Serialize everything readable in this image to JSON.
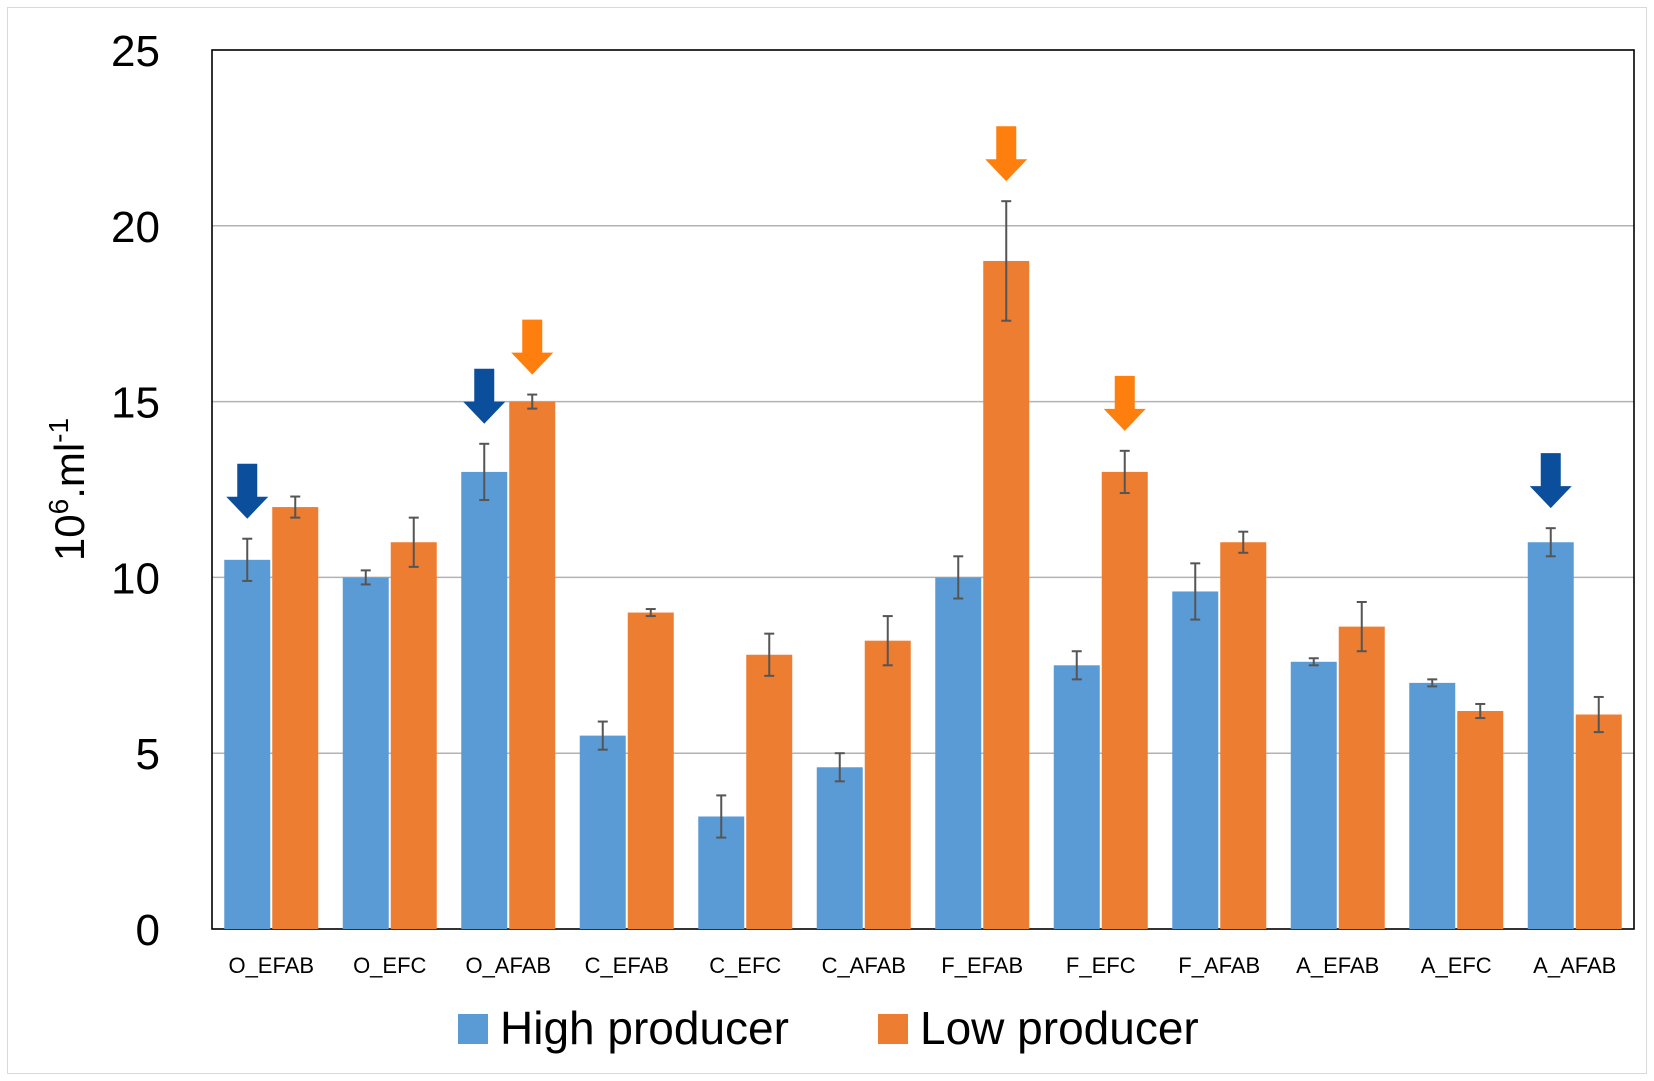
{
  "chart_data": {
    "type": "bar",
    "categories": [
      "O_EFAB",
      "O_EFC",
      "O_AFAB",
      "C_EFAB",
      "C_EFC",
      "C_AFAB",
      "F_EFAB",
      "F_EFC",
      "F_AFAB",
      "A_EFAB",
      "A_EFC",
      "A_AFAB"
    ],
    "series": [
      {
        "name": "High producer",
        "color": "#5b9bd5",
        "values": [
          10.5,
          10.0,
          13.0,
          5.5,
          3.2,
          4.6,
          10.0,
          7.5,
          9.6,
          7.6,
          7.0,
          11.0
        ],
        "error": [
          0.6,
          0.2,
          0.8,
          0.4,
          0.6,
          0.4,
          0.6,
          0.4,
          0.8,
          0.1,
          0.1,
          0.4
        ]
      },
      {
        "name": "Low producer",
        "color": "#ed7d31",
        "values": [
          12.0,
          11.0,
          15.0,
          9.0,
          7.8,
          8.2,
          19.0,
          13.0,
          11.0,
          8.6,
          6.2,
          6.1
        ],
        "error": [
          0.3,
          0.7,
          0.2,
          0.1,
          0.6,
          0.7,
          1.7,
          0.6,
          0.3,
          0.7,
          0.2,
          0.5
        ]
      }
    ],
    "ylabel_base": "10",
    "ylabel_sup1": "6",
    "ylabel_mid": ".ml",
    "ylabel_sup2": "-1",
    "ylim": [
      0,
      25
    ],
    "yticks": [
      0,
      5,
      10,
      15,
      20,
      25
    ],
    "grid": true,
    "legend_position": "bottom",
    "arrows": [
      {
        "category": "O_EFAB",
        "series": "High producer",
        "color": "#0b4f9c"
      },
      {
        "category": "O_AFAB",
        "series": "High producer",
        "color": "#0b4f9c"
      },
      {
        "category": "O_AFAB",
        "series": "Low producer",
        "color": "#ff7f0e"
      },
      {
        "category": "F_EFAB",
        "series": "Low producer",
        "color": "#ff7f0e"
      },
      {
        "category": "F_EFC",
        "series": "Low producer",
        "color": "#ff7f0e"
      },
      {
        "category": "A_AFAB",
        "series": "High producer",
        "color": "#0b4f9c"
      }
    ]
  }
}
